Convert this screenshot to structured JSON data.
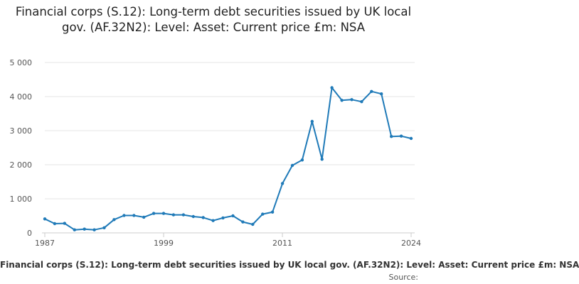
{
  "chart_data": {
    "type": "line",
    "title": "Financial corps (S.12): Long-term debt securities issued by UK local gov. (AF.32N2): Level: Asset: Current price £m: NSA",
    "xlabel": "",
    "ylabel": "",
    "xlim": [
      1987,
      2024
    ],
    "ylim": [
      0,
      5000
    ],
    "x_ticks": [
      "1987",
      "1999",
      "2011",
      "2024"
    ],
    "y_ticks": [
      "0",
      "1 000",
      "2 000",
      "3 000",
      "4 000",
      "5 000"
    ],
    "grid": true,
    "legend": "none",
    "series": [
      {
        "color": "#1f7ab8",
        "x": [
          1987,
          1988,
          1989,
          1990,
          1991,
          1992,
          1993,
          1994,
          1995,
          1996,
          1997,
          1998,
          1999,
          2000,
          2001,
          2002,
          2003,
          2004,
          2005,
          2006,
          2007,
          2008,
          2009,
          2010,
          2011,
          2012,
          2013,
          2014,
          2015,
          2016,
          2017,
          2018,
          2019,
          2020,
          2021,
          2022,
          2023,
          2024
        ],
        "values": [
          410,
          270,
          280,
          90,
          110,
          90,
          150,
          390,
          510,
          510,
          460,
          570,
          570,
          530,
          530,
          480,
          450,
          360,
          440,
          500,
          320,
          250,
          550,
          610,
          1450,
          1980,
          2140,
          3270,
          2160,
          4260,
          3890,
          3910,
          3850,
          4150,
          4080,
          2830,
          2840,
          2770
        ]
      }
    ]
  },
  "footer": {
    "title": "Financial corps (S.12): Long-term debt securities issued by UK local gov. (AF.32N2): Level: Asset: Current price £m: NSA",
    "source": "Source:"
  }
}
